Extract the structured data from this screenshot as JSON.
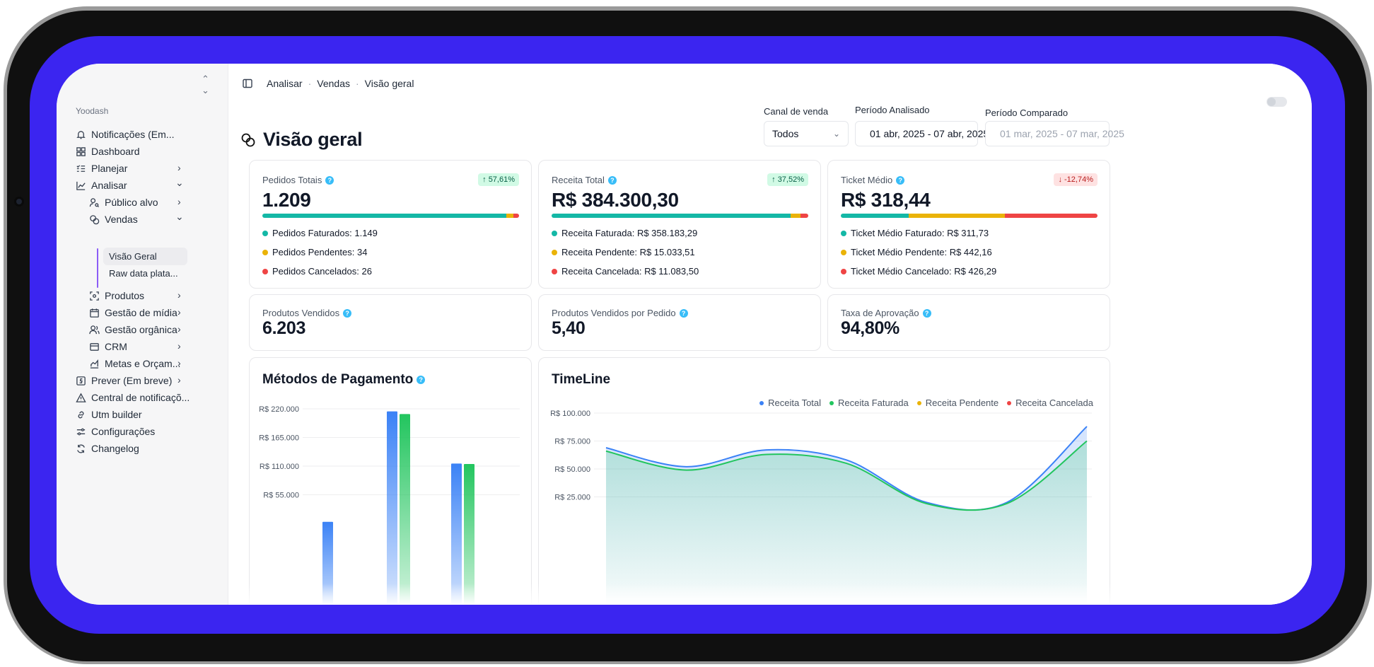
{
  "sidebar": {
    "workspace": "Yoodash",
    "items": [
      {
        "label": "Notificações (Em..."
      },
      {
        "label": "Dashboard"
      },
      {
        "label": "Planejar"
      },
      {
        "label": "Analisar"
      },
      {
        "label": "Público alvo"
      },
      {
        "label": "Vendas"
      },
      {
        "label": "Visão Geral"
      },
      {
        "label": "Raw data plata..."
      },
      {
        "label": "Produtos"
      },
      {
        "label": "Gestão de mídia"
      },
      {
        "label": "Gestão orgânica"
      },
      {
        "label": "CRM"
      },
      {
        "label": "Metas e Orçam..."
      },
      {
        "label": "Prever (Em breve)"
      },
      {
        "label": "Central de notificaçõ..."
      },
      {
        "label": "Utm builder"
      },
      {
        "label": "Configurações"
      },
      {
        "label": "Changelog"
      }
    ]
  },
  "breadcrumb": [
    "Analisar",
    "Vendas",
    "Visão geral"
  ],
  "page": {
    "title": "Visão geral"
  },
  "filters": {
    "canal": {
      "label": "Canal de venda",
      "value": "Todos"
    },
    "periodo": {
      "label": "Período Analisado",
      "value": "01 abr, 2025 - 07 abr, 2025"
    },
    "comparado": {
      "label": "Período Comparado",
      "value": "01 mar, 2025 - 07 mar, 2025"
    }
  },
  "kpis": [
    {
      "label": "Pedidos Totais",
      "value": "1.209",
      "badge": "57,61%",
      "trend": "up",
      "breakdown": [
        {
          "text": "Pedidos Faturados: 1.149",
          "share": 0.9504,
          "color": "#14b8a6"
        },
        {
          "text": "Pedidos Pendentes: 34",
          "share": 0.0281,
          "color": "#eab308"
        },
        {
          "text": "Pedidos Cancelados: 26",
          "share": 0.0215,
          "color": "#ef4444"
        }
      ]
    },
    {
      "label": "Receita Total",
      "value": "R$ 384.300,30",
      "badge": "37,52%",
      "trend": "up",
      "breakdown": [
        {
          "text": "Receita Faturada: R$ 358.183,29",
          "share": 0.932,
          "color": "#14b8a6"
        },
        {
          "text": "Receita Pendente: R$ 15.033,51",
          "share": 0.039,
          "color": "#eab308"
        },
        {
          "text": "Receita Cancelada: R$ 11.083,50",
          "share": 0.029,
          "color": "#ef4444"
        }
      ]
    },
    {
      "label": "Ticket Médio",
      "value": "R$ 318,44",
      "badge": "-12,74%",
      "trend": "down",
      "breakdown": [
        {
          "text": "Ticket Médio Faturado: R$ 311,73",
          "share": 0.264,
          "color": "#14b8a6"
        },
        {
          "text": "Ticket Médio Pendente: R$ 442,16",
          "share": 0.375,
          "color": "#eab308"
        },
        {
          "text": "Ticket Médio Cancelado: R$ 426,29",
          "share": 0.361,
          "color": "#ef4444"
        }
      ]
    }
  ],
  "kpis_small": [
    {
      "label": "Produtos Vendidos",
      "value": "6.203"
    },
    {
      "label": "Produtos Vendidos por Pedido",
      "value": "5,40"
    },
    {
      "label": "Taxa de Aprovação",
      "value": "94,80%"
    }
  ],
  "payments": {
    "title": "Métodos de Pagamento",
    "chart_data": {
      "type": "bar",
      "y_ticks": [
        "R$ 220.000",
        "R$ 165.000",
        "R$ 110.000",
        "R$ 55.000"
      ],
      "ylim": [
        0,
        220000
      ],
      "series": [
        {
          "color": "#3b82f6",
          "values": [
            3000,
            215000,
            115000
          ]
        },
        {
          "color": "#22c55e",
          "values": [
            0,
            210000,
            114000
          ]
        }
      ]
    }
  },
  "timeline": {
    "title": "TimeLine",
    "chart_data": {
      "type": "area",
      "y_ticks": [
        "R$ 100.000",
        "R$ 75.000",
        "R$ 50.000",
        "R$ 25.000"
      ],
      "ylim": [
        0,
        100000
      ],
      "series": [
        {
          "name": "Receita Total",
          "color": "#3b82f6",
          "values": [
            69000,
            52000,
            67000,
            58000,
            20000,
            20000,
            88000
          ]
        },
        {
          "name": "Receita Faturada",
          "color": "#22c55e",
          "values": [
            66000,
            49000,
            63000,
            55000,
            19000,
            19000,
            75000
          ]
        },
        {
          "name": "Receita Pendente",
          "color": "#eab308",
          "values": []
        },
        {
          "name": "Receita Cancelada",
          "color": "#ef4444",
          "values": []
        }
      ]
    }
  }
}
